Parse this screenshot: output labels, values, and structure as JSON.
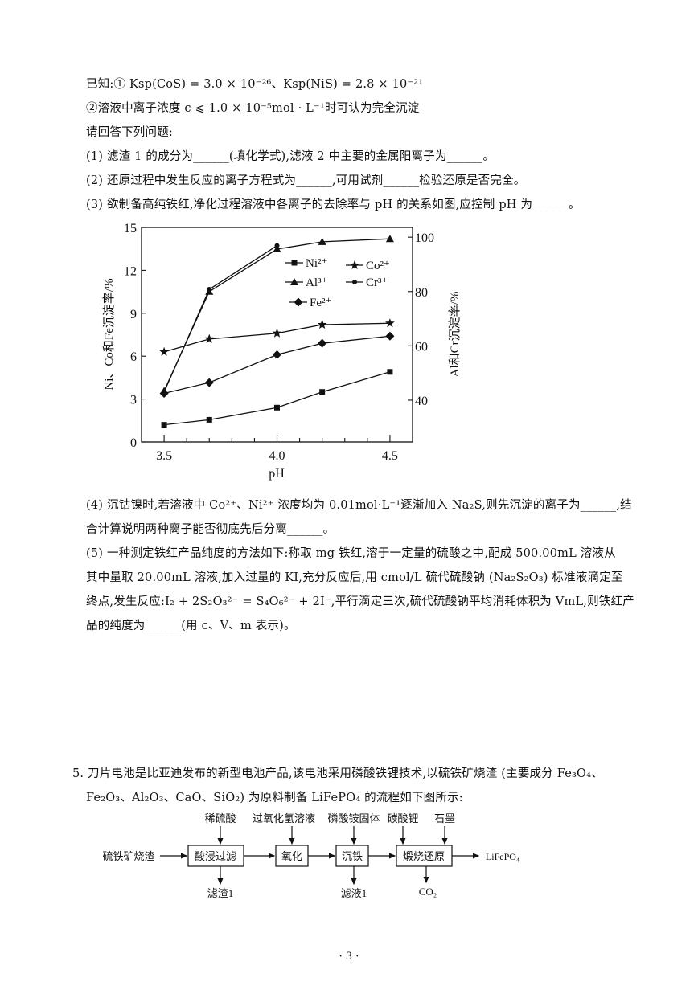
{
  "given": {
    "line1": "已知:① Ksp(CoS) = 3.0 × 10⁻²⁶、Ksp(NiS) = 2.8 × 10⁻²¹",
    "line2": "②溶液中离子浓度 c ⩽ 1.0 × 10⁻⁵mol · L⁻¹时可认为完全沉淀",
    "prompt": "请回答下列问题:"
  },
  "questions": [
    "(1) 滤渣 1 的成分为______(填化学式),滤液 2 中主要的金属阳离子为______。",
    "(2) 还原过程中发生反应的离子方程式为______,可用试剂______检验还原是否完全。",
    "(3) 欲制备高纯铁红,净化过程溶液中各离子的去除率与 pH 的关系如图,应控制 pH 为______。",
    "(4) 沉钴镍时,若溶液中 Co²⁺、Ni²⁺ 浓度均为 0.01mol·L⁻¹逐渐加入 Na₂S,则先沉淀的离子为______,结",
    "合计算说明两种离子能否彻底先后分离______。",
    "(5) 一种测定铁红产品纯度的方法如下:称取 mg 铁红,溶于一定量的硫酸之中,配成 500.00mL 溶液从",
    "其中量取 20.00mL 溶液,加入过量的 KI,充分反应后,用 cmol/L 硫代硫酸钠 (Na₂S₂O₃) 标准液滴定至",
    "终点,发生反应:I₂ + 2S₂O₃²⁻ = S₄O₆²⁻ + 2I⁻,平行滴定三次,硫代硫酸钠平均消耗体积为 VmL,则铁红产",
    "品的纯度为______(用 c、V、m 表示)。"
  ],
  "chart_data": {
    "type": "line",
    "xlabel": "pH",
    "ylabel_left": "Ni、Co和Fe沉淀率/%",
    "ylabel_right": "Al和Cr沉淀率/%",
    "xlim": [
      3.4,
      4.6
    ],
    "xticks": [
      "3.5",
      "4.0",
      "4.5"
    ],
    "ylim_left": [
      0,
      15
    ],
    "yticks_left": [
      "0",
      "3",
      "6",
      "9",
      "12",
      "15"
    ],
    "ylim_right": [
      24.6,
      103.6
    ],
    "yticks_right": [
      "40",
      "60",
      "80",
      "100"
    ],
    "grid": false,
    "legend_position": "top-center",
    "series": [
      {
        "name": "Ni²⁺",
        "axis": "left",
        "marker": "square",
        "x": [
          3.5,
          3.7,
          4.0,
          4.2,
          4.5
        ],
        "y": [
          1.2,
          1.55,
          2.4,
          3.5,
          4.9
        ]
      },
      {
        "name": "Co²⁺",
        "axis": "left",
        "marker": "star",
        "x": [
          3.5,
          3.7,
          4.0,
          4.2,
          4.5
        ],
        "y": [
          6.3,
          7.2,
          7.6,
          8.2,
          8.3
        ]
      },
      {
        "name": "Al³⁺",
        "axis": "right",
        "marker": "triangle",
        "x": [
          3.5,
          3.7,
          4.0,
          4.2,
          4.5
        ],
        "y": [
          43.4,
          80.0,
          95.6,
          98.3,
          99.4
        ]
      },
      {
        "name": "Cr³⁺",
        "axis": "right",
        "marker": "dot",
        "x": [
          3.5,
          3.7,
          4.0
        ],
        "y": [
          43.0,
          80.8,
          96.9
        ]
      },
      {
        "name": "Fe²⁺",
        "axis": "left",
        "marker": "diamond",
        "x": [
          3.5,
          3.7,
          4.0,
          4.2,
          4.5
        ],
        "y": [
          3.4,
          4.15,
          6.1,
          6.9,
          7.4
        ]
      }
    ]
  },
  "q5": {
    "line1": "5. 刀片电池是比亚迪发布的新型电池产品,该电池采用磷酸铁锂技术,以硫铁矿烧渣 (主要成分 Fe₃O₄、",
    "line2": "Fe₂O₃、Al₂O₃、CaO、SiO₂) 为原料制备 LiFePO₄ 的流程如下图所示:"
  },
  "flow": {
    "start": "硫铁矿烧渣",
    "steps": [
      "酸浸过滤",
      "氧化",
      "沉铁",
      "煅烧还原"
    ],
    "inputs": [
      "稀硫酸",
      "过氧化氢溶液",
      "磷酸铵固体",
      "碳酸锂",
      "石墨"
    ],
    "outputs": [
      "滤渣1",
      "滤液1",
      "CO₂"
    ],
    "product": "LiFePO₄"
  },
  "page_number": "· 3 ·"
}
